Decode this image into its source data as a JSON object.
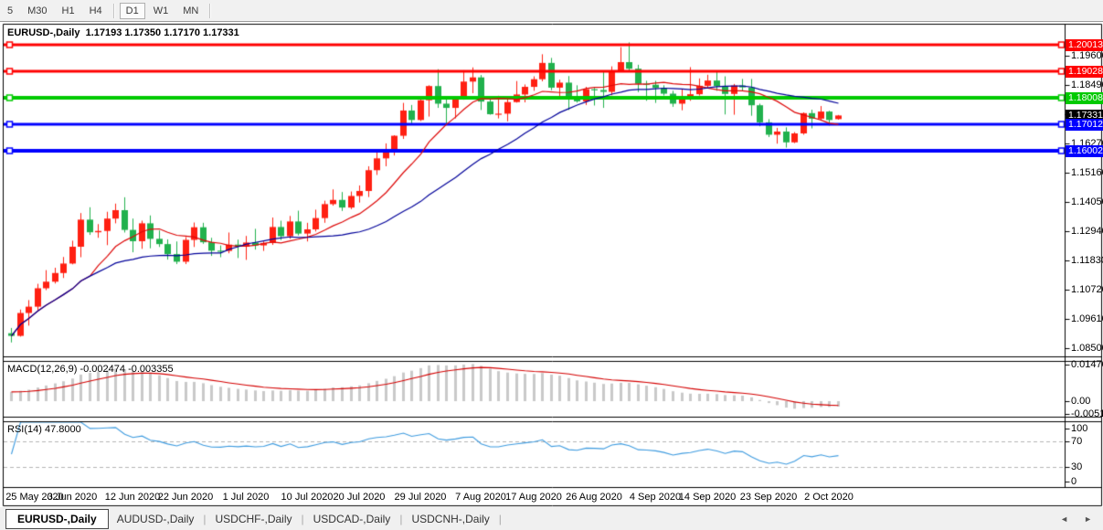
{
  "toolbar": {
    "items": [
      {
        "label": "5",
        "active": false
      },
      {
        "label": "M30",
        "active": false
      },
      {
        "label": "H1",
        "active": false
      },
      {
        "label": "H4",
        "active": false
      },
      {
        "label": "D1",
        "active": true
      },
      {
        "label": "W1",
        "active": false
      },
      {
        "label": "MN",
        "active": false
      }
    ]
  },
  "chart": {
    "title": "EURUSD-,Daily  1.17193 1.17350 1.17170 1.17331"
  },
  "price_scale": {
    "ticks": [
      {
        "label": "1.19600",
        "value": 1.196
      },
      {
        "label": "1.18490",
        "value": 1.1849
      },
      {
        "label": "1.17380",
        "value": 1.1738
      },
      {
        "label": "1.16270",
        "value": 1.1627
      },
      {
        "label": "1.15160",
        "value": 1.1516
      },
      {
        "label": "1.14050",
        "value": 1.1405
      },
      {
        "label": "1.12940",
        "value": 1.1294
      },
      {
        "label": "1.11830",
        "value": 1.1183
      },
      {
        "label": "1.10720",
        "value": 1.1072
      },
      {
        "label": "1.09610",
        "value": 1.0961
      },
      {
        "label": "1.08500",
        "value": 1.085
      }
    ],
    "badges": [
      {
        "label": "1.20013",
        "value": 1.20013,
        "bg": "#ff0000"
      },
      {
        "label": "1.19028",
        "value": 1.19028,
        "bg": "#ff0000"
      },
      {
        "label": "1.18008",
        "value": 1.18008,
        "bg": "#00ca00"
      },
      {
        "label": "1.17331",
        "value": 1.17331,
        "bg": "#000000"
      },
      {
        "label": "1.17012",
        "value": 1.17012,
        "bg": "#0000ff"
      },
      {
        "label": "1.16002",
        "value": 1.16002,
        "bg": "#0000ff"
      }
    ]
  },
  "macd_panel": {
    "label": "MACD(12,26,9) -0.002474 -0.003355",
    "scale": [
      {
        "label": "0.014706",
        "value": 0.014706
      },
      {
        "label": "0.00",
        "value": 0
      },
      {
        "label": "-0.005113",
        "value": -0.005113
      }
    ]
  },
  "rsi_panel": {
    "label": "RSI(14) 47.8000",
    "scale": [
      {
        "label": "100",
        "value": 100
      },
      {
        "label": "70",
        "value": 70
      },
      {
        "label": "30",
        "value": 30
      },
      {
        "label": "0",
        "value": 0
      }
    ]
  },
  "date_axis": {
    "labels": [
      {
        "text": "25 May 2020",
        "index": 0
      },
      {
        "text": "3 Jun 2020",
        "index": 7
      },
      {
        "text": "12 Jun 2020",
        "index": 14
      },
      {
        "text": "22 Jun 2020",
        "index": 20
      },
      {
        "text": "1 Jul 2020",
        "index": 27
      },
      {
        "text": "10 Jul 2020",
        "index": 34
      },
      {
        "text": "20 Jul 2020",
        "index": 40
      },
      {
        "text": "29 Jul 2020",
        "index": 47
      },
      {
        "text": "7 Aug 2020",
        "index": 54
      },
      {
        "text": "17 Aug 2020",
        "index": 60
      },
      {
        "text": "26 Aug 2020",
        "index": 67
      },
      {
        "text": "4 Sep 2020",
        "index": 74
      },
      {
        "text": "14 Sep 2020",
        "index": 80
      },
      {
        "text": "23 Sep 2020",
        "index": 87
      },
      {
        "text": "2 Oct 2020",
        "index": 94
      }
    ]
  },
  "tabs": {
    "items": [
      {
        "label": "EURUSD-,Daily",
        "active": true
      },
      {
        "label": "AUDUSD-,Daily",
        "active": false
      },
      {
        "label": "USDCHF-,Daily",
        "active": false
      },
      {
        "label": "USDCAD-,Daily",
        "active": false
      },
      {
        "label": "USDCNH-,Daily",
        "active": false
      }
    ],
    "scroll_left_glyph": "◄",
    "scroll_right_glyph": "►"
  },
  "chart_data": {
    "type": "candlestick",
    "symbol": "EURUSD-",
    "timeframe": "Daily",
    "current_bar": {
      "open": 1.17193,
      "high": 1.1735,
      "low": 1.1717,
      "close": 1.17331
    },
    "ylim": [
      1.0817,
      1.2075
    ],
    "bull_color": "#ff2012",
    "bear_color": "#21b14d",
    "hlines": [
      {
        "price": 1.20013,
        "color": "#ff0000",
        "width": 3
      },
      {
        "price": 1.19028,
        "color": "#ff0000",
        "width": 3
      },
      {
        "price": 1.18008,
        "color": "#00ca00",
        "width": 4
      },
      {
        "price": 1.17012,
        "color": "#0000ff",
        "width": 3
      },
      {
        "price": 1.16002,
        "color": "#0000ff",
        "width": 4
      }
    ],
    "overlays": [
      {
        "name": "sma-fast",
        "period": 10,
        "color": "#dd0808"
      },
      {
        "name": "sma-slow",
        "period": 25,
        "color": "#000099"
      }
    ],
    "macd": {
      "fast": 12,
      "slow": 26,
      "signal": 9,
      "histogram_color": "#c9c9c9",
      "signal_color": "#d40000",
      "last_macd": -0.002474,
      "last_signal": -0.003355
    },
    "rsi": {
      "period": 14,
      "color": "#3e9bdf",
      "levels": [
        70,
        30
      ],
      "last_value": 47.8
    },
    "ohlc": [
      [
        "2020-05-25",
        1.0905,
        1.0925,
        1.087,
        1.0895
      ],
      [
        "2020-05-26",
        1.0895,
        1.0995,
        1.0892,
        1.0982
      ],
      [
        "2020-05-27",
        1.0982,
        1.1031,
        1.0934,
        1.1006
      ],
      [
        "2020-05-28",
        1.1006,
        1.1093,
        1.0992,
        1.1076
      ],
      [
        "2020-05-29",
        1.1076,
        1.1145,
        1.1069,
        1.1101
      ],
      [
        "2020-06-01",
        1.1101,
        1.1154,
        1.1094,
        1.1134
      ],
      [
        "2020-06-02",
        1.1134,
        1.1195,
        1.1115,
        1.117
      ],
      [
        "2020-06-03",
        1.117,
        1.1257,
        1.1167,
        1.1234
      ],
      [
        "2020-06-04",
        1.1234,
        1.1362,
        1.1194,
        1.1337
      ],
      [
        "2020-06-05",
        1.1337,
        1.1384,
        1.1279,
        1.1289
      ],
      [
        "2020-06-08",
        1.1289,
        1.132,
        1.1268,
        1.1294
      ],
      [
        "2020-06-09",
        1.1294,
        1.1367,
        1.124,
        1.1341
      ],
      [
        "2020-06-10",
        1.1341,
        1.1398,
        1.1323,
        1.1373
      ],
      [
        "2020-06-11",
        1.1373,
        1.1422,
        1.1288,
        1.1298
      ],
      [
        "2020-06-12",
        1.1298,
        1.1341,
        1.1213,
        1.1255
      ],
      [
        "2020-06-15",
        1.1255,
        1.1333,
        1.1226,
        1.1323
      ],
      [
        "2020-06-16",
        1.1323,
        1.1353,
        1.1228,
        1.1264
      ],
      [
        "2020-06-17",
        1.1264,
        1.1296,
        1.1233,
        1.1244
      ],
      [
        "2020-06-18",
        1.1244,
        1.1262,
        1.1185,
        1.1206
      ],
      [
        "2020-06-19",
        1.1206,
        1.1254,
        1.1168,
        1.1177
      ],
      [
        "2020-06-22",
        1.1177,
        1.1271,
        1.1168,
        1.126
      ],
      [
        "2020-06-23",
        1.126,
        1.1326,
        1.1233,
        1.1308
      ],
      [
        "2020-06-24",
        1.1308,
        1.1325,
        1.1245,
        1.1251
      ],
      [
        "2020-06-25",
        1.1251,
        1.1268,
        1.1199,
        1.1219
      ],
      [
        "2020-06-26",
        1.1219,
        1.1239,
        1.1194,
        1.1218
      ],
      [
        "2020-06-29",
        1.1218,
        1.1288,
        1.1209,
        1.1242
      ],
      [
        "2020-06-30",
        1.1242,
        1.1261,
        1.1191,
        1.1234
      ],
      [
        "2020-07-01",
        1.1234,
        1.1275,
        1.1184,
        1.125
      ],
      [
        "2020-07-02",
        1.125,
        1.1302,
        1.1223,
        1.1239
      ],
      [
        "2020-07-03",
        1.1239,
        1.1254,
        1.1218,
        1.1248
      ],
      [
        "2020-07-06",
        1.1248,
        1.1345,
        1.1241,
        1.1309
      ],
      [
        "2020-07-07",
        1.1309,
        1.1333,
        1.1259,
        1.1274
      ],
      [
        "2020-07-08",
        1.1274,
        1.1351,
        1.1264,
        1.133
      ],
      [
        "2020-07-09",
        1.133,
        1.1371,
        1.1277,
        1.1284
      ],
      [
        "2020-07-10",
        1.1284,
        1.1325,
        1.1254,
        1.13
      ],
      [
        "2020-07-13",
        1.13,
        1.1375,
        1.1292,
        1.1343
      ],
      [
        "2020-07-14",
        1.1343,
        1.1409,
        1.1325,
        1.1396
      ],
      [
        "2020-07-15",
        1.1396,
        1.1452,
        1.139,
        1.1412
      ],
      [
        "2020-07-16",
        1.1412,
        1.1442,
        1.137,
        1.1383
      ],
      [
        "2020-07-17",
        1.1383,
        1.1444,
        1.1377,
        1.1427
      ],
      [
        "2020-07-20",
        1.1427,
        1.1467,
        1.1402,
        1.1446
      ],
      [
        "2020-07-21",
        1.1446,
        1.154,
        1.1423,
        1.1525
      ],
      [
        "2020-07-22",
        1.1525,
        1.1601,
        1.1507,
        1.157
      ],
      [
        "2020-07-23",
        1.157,
        1.1627,
        1.154,
        1.1597
      ],
      [
        "2020-07-24",
        1.1597,
        1.1658,
        1.1581,
        1.1656
      ],
      [
        "2020-07-27",
        1.1656,
        1.1781,
        1.1644,
        1.1752
      ],
      [
        "2020-07-28",
        1.1752,
        1.1773,
        1.17,
        1.1716
      ],
      [
        "2020-07-29",
        1.1716,
        1.1807,
        1.1712,
        1.1791
      ],
      [
        "2020-07-30",
        1.1791,
        1.1848,
        1.1729,
        1.1845
      ],
      [
        "2020-07-31",
        1.1845,
        1.1909,
        1.1762,
        1.1778
      ],
      [
        "2020-08-03",
        1.1778,
        1.1797,
        1.1696,
        1.1762
      ],
      [
        "2020-08-04",
        1.1762,
        1.1806,
        1.1722,
        1.1802
      ],
      [
        "2020-08-05",
        1.1802,
        1.1905,
        1.1793,
        1.1862
      ],
      [
        "2020-08-06",
        1.1862,
        1.1916,
        1.1818,
        1.1878
      ],
      [
        "2020-08-07",
        1.1878,
        1.1887,
        1.1754,
        1.1786
      ],
      [
        "2020-08-10",
        1.1786,
        1.1798,
        1.1736,
        1.1738
      ],
      [
        "2020-08-11",
        1.1738,
        1.1808,
        1.1722,
        1.174
      ],
      [
        "2020-08-12",
        1.174,
        1.1796,
        1.1711,
        1.1784
      ],
      [
        "2020-08-13",
        1.1784,
        1.1864,
        1.1782,
        1.1813
      ],
      [
        "2020-08-14",
        1.1813,
        1.1851,
        1.1783,
        1.1842
      ],
      [
        "2020-08-17",
        1.1842,
        1.1882,
        1.1827,
        1.1871
      ],
      [
        "2020-08-18",
        1.1871,
        1.1966,
        1.1863,
        1.1933
      ],
      [
        "2020-08-19",
        1.1933,
        1.1952,
        1.1829,
        1.1839
      ],
      [
        "2020-08-20",
        1.1839,
        1.1869,
        1.1801,
        1.1858
      ],
      [
        "2020-08-21",
        1.1858,
        1.1883,
        1.1754,
        1.1796
      ],
      [
        "2020-08-24",
        1.1796,
        1.1848,
        1.1782,
        1.1787
      ],
      [
        "2020-08-25",
        1.1787,
        1.1842,
        1.1773,
        1.1833
      ],
      [
        "2020-08-26",
        1.1833,
        1.1838,
        1.1771,
        1.183
      ],
      [
        "2020-08-27",
        1.183,
        1.19,
        1.1762,
        1.1823
      ],
      [
        "2020-08-28",
        1.1823,
        1.192,
        1.181,
        1.1903
      ],
      [
        "2020-08-31",
        1.1903,
        1.1993,
        1.1898,
        1.1936
      ],
      [
        "2020-09-01",
        1.1936,
        1.2011,
        1.1901,
        1.1911
      ],
      [
        "2020-09-02",
        1.1911,
        1.1926,
        1.1822,
        1.1854
      ],
      [
        "2020-09-03",
        1.1854,
        1.1865,
        1.1789,
        1.185
      ],
      [
        "2020-09-04",
        1.185,
        1.1865,
        1.1781,
        1.1838
      ],
      [
        "2020-09-07",
        1.1838,
        1.1848,
        1.1809,
        1.1816
      ],
      [
        "2020-09-08",
        1.1816,
        1.1827,
        1.1766,
        1.1778
      ],
      [
        "2020-09-09",
        1.1778,
        1.1834,
        1.1753,
        1.1803
      ],
      [
        "2020-09-10",
        1.1803,
        1.1917,
        1.1789,
        1.1814
      ],
      [
        "2020-09-11",
        1.1814,
        1.1874,
        1.1809,
        1.1846
      ],
      [
        "2020-09-14",
        1.1846,
        1.1888,
        1.1839,
        1.1866
      ],
      [
        "2020-09-15",
        1.1866,
        1.1901,
        1.1827,
        1.1845
      ],
      [
        "2020-09-16",
        1.1845,
        1.1882,
        1.1737,
        1.1815
      ],
      [
        "2020-09-17",
        1.1815,
        1.1853,
        1.1736,
        1.1847
      ],
      [
        "2020-09-18",
        1.1847,
        1.1872,
        1.1826,
        1.184
      ],
      [
        "2020-09-21",
        1.184,
        1.1872,
        1.1732,
        1.1772
      ],
      [
        "2020-09-22",
        1.1772,
        1.1778,
        1.1692,
        1.1707
      ],
      [
        "2020-09-23",
        1.1707,
        1.1719,
        1.1651,
        1.166
      ],
      [
        "2020-09-24",
        1.166,
        1.1686,
        1.1626,
        1.1672
      ],
      [
        "2020-09-25",
        1.1672,
        1.1688,
        1.1611,
        1.1631
      ],
      [
        "2020-09-28",
        1.1631,
        1.167,
        1.1628,
        1.1665
      ],
      [
        "2020-09-29",
        1.1665,
        1.1745,
        1.166,
        1.1742
      ],
      [
        "2020-09-30",
        1.1742,
        1.1755,
        1.1684,
        1.1721
      ],
      [
        "2020-10-01",
        1.1721,
        1.1769,
        1.1717,
        1.1748
      ],
      [
        "2020-10-02",
        1.1748,
        1.1751,
        1.1695,
        1.1716
      ],
      [
        "2020-10-05",
        1.17193,
        1.1735,
        1.1717,
        1.17331
      ]
    ]
  }
}
